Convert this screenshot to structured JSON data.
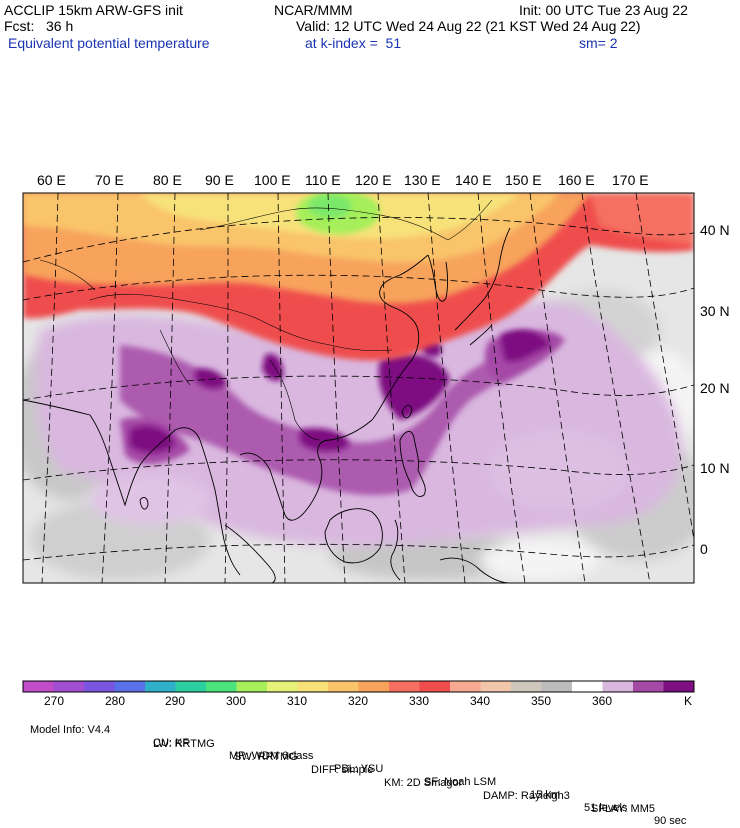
{
  "header": {
    "model_title": "ACCLIP 15km ARW-GFS init",
    "forecast": "Fcst:   36 h",
    "field_name": "Equivalent potential temperature",
    "center": "NCAR/MMM",
    "init_time": "Init: 00 UTC Tue 23 Aug 22",
    "valid_time": "Valid: 12 UTC Wed 24 Aug 22 (21 KST Wed 24 Aug 22)",
    "level": "at k-index =  51",
    "smoothing": "sm= 2"
  },
  "map": {
    "lon_labels": [
      "60 E",
      "70 E",
      "80 E",
      "90 E",
      "100 E",
      "110 E",
      "120 E",
      "130 E",
      "140 E",
      "150 E",
      "160 E",
      "170 E"
    ],
    "lat_labels": [
      "40 N",
      "30 N",
      "20 N",
      "10 N",
      "0"
    ]
  },
  "colorbar": {
    "colors": [
      "#c04cc8",
      "#a14fd0",
      "#7a55e0",
      "#5a70e8",
      "#2fb0c8",
      "#2ccfa0",
      "#4ce27c",
      "#a6ef5a",
      "#e6f178",
      "#f7e27a",
      "#f9c46a",
      "#f7a35c",
      "#f57060",
      "#ef4d4d",
      "#f7a890",
      "#f1c6aa",
      "#cfc6bc",
      "#bcbcbc",
      "#ffffff",
      "#d8b6de",
      "#a44aa6",
      "#7d0f80"
    ],
    "tick_labels": [
      "270",
      "280",
      "290",
      "300",
      "310",
      "320",
      "330",
      "340",
      "350",
      "360"
    ],
    "unit": "K"
  },
  "footer": {
    "line1": [
      "Model Info: V4.4",
      "CU: KF",
      "MP: WDM 6class",
      "PBL: YSU",
      "SF: Noah LSM",
      "15 km",
      "51 levels",
      "90 sec"
    ],
    "line2": [
      "LW: RRTMG",
      "SW: RRTMG",
      "DIFF: simple",
      "KM: 2D Smagor",
      "DAMP: Rayleigh3",
      "SFLAY: MM5"
    ]
  }
}
